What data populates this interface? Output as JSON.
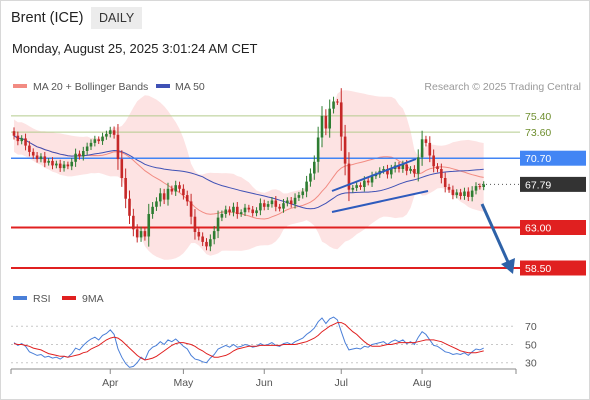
{
  "header": {
    "instrument": "Brent (ICE)",
    "timeframe": "DAILY",
    "datetime": "Monday, August 25, 2025 3:01:24 AM CET"
  },
  "legend": {
    "ma20_bb_label": "MA 20 + Bollinger Bands",
    "ma50_label": "MA 50",
    "rsi_label": "RSI",
    "rsi_ma_label": "9MA",
    "credit": "Research © 2025 Trading Central"
  },
  "colors": {
    "up_candle": "#2e7d32",
    "down_candle": "#c62828",
    "bollinger_fill": "#fde3e3",
    "ma20": "#f28b82",
    "ma50": "#3f51b5",
    "resistance": "#b5cc8e",
    "pivot": "#4285f4",
    "support": "#e02020",
    "last_price": "#333333",
    "rsi": "#4a7fd8",
    "rsi_ma": "#e02020",
    "trend_lines": "#2e5bbd",
    "forecast_arrow": "#2e62a8"
  },
  "chart_data": [
    {
      "type": "candlestick",
      "x_ticks": [
        "Apr",
        "May",
        "Jun",
        "Jul",
        "Aug"
      ],
      "ylim": [
        57.5,
        77.5
      ],
      "levels": [
        {
          "value": 75.4,
          "label": "75.40",
          "kind": "resistance"
        },
        {
          "value": 73.6,
          "label": "73.60",
          "kind": "resistance"
        },
        {
          "value": 70.7,
          "label": "70.70",
          "kind": "pivot"
        },
        {
          "value": 67.79,
          "label": "67.79",
          "kind": "last"
        },
        {
          "value": 63.0,
          "label": "63.00",
          "kind": "support"
        },
        {
          "value": 58.5,
          "label": "58.50",
          "kind": "support"
        }
      ],
      "closes": [
        73.2,
        72.6,
        72.9,
        72.1,
        71.4,
        71.0,
        70.6,
        70.9,
        70.2,
        70.4,
        69.9,
        70.1,
        69.6,
        70.0,
        69.8,
        70.3,
        71.2,
        70.9,
        71.5,
        72.0,
        72.4,
        72.8,
        72.6,
        73.1,
        73.4,
        73.8,
        73.3,
        70.6,
        68.5,
        66.2,
        64.3,
        62.8,
        61.9,
        62.6,
        62.0,
        64.5,
        65.3,
        65.9,
        66.8,
        66.1,
        67.3,
        67.0,
        67.7,
        67.3,
        66.6,
        65.9,
        64.2,
        62.5,
        62.0,
        61.4,
        60.9,
        61.7,
        62.6,
        64.1,
        64.5,
        65.0,
        64.7,
        65.3,
        64.5,
        64.7,
        65.2,
        65.0,
        64.6,
        64.9,
        65.7,
        65.3,
        65.6,
        66.0,
        65.3,
        65.1,
        65.7,
        66.0,
        65.6,
        66.3,
        66.6,
        67.0,
        68.1,
        69.0,
        70.3,
        73.0,
        75.4,
        74.0,
        76.2,
        77.0,
        76.9,
        73.1,
        70.1,
        67.2,
        67.4,
        67.7,
        67.5,
        68.2,
        68.0,
        68.7,
        68.9,
        69.3,
        69.5,
        68.9,
        69.5,
        69.9,
        69.5,
        70.0,
        69.3,
        69.5,
        69.0,
        70.8,
        72.8,
        72.4,
        71.0,
        69.8,
        69.5,
        68.5,
        67.5,
        67.2,
        66.6,
        66.9,
        66.5,
        67.0,
        66.4,
        67.1,
        67.6,
        67.5,
        67.79
      ]
    },
    {
      "type": "line",
      "title": "RSI",
      "x_ticks": [
        "Apr",
        "May",
        "Jun",
        "Jul",
        "Aug"
      ],
      "y_ticks": [
        70,
        50,
        30
      ],
      "ylim": [
        22,
        90
      ],
      "series": [
        {
          "name": "RSI",
          "values": [
            52,
            49,
            51,
            48,
            42,
            40,
            38,
            39,
            36,
            37,
            35,
            36,
            34,
            37,
            36,
            40,
            46,
            44,
            49,
            53,
            56,
            58,
            55,
            60,
            62,
            66,
            61,
            45,
            36,
            29,
            25,
            26,
            30,
            36,
            33,
            43,
            47,
            49,
            53,
            50,
            55,
            53,
            56,
            52,
            48,
            45,
            38,
            34,
            33,
            31,
            30,
            35,
            39,
            45,
            47,
            49,
            47,
            50,
            47,
            48,
            50,
            49,
            47,
            48,
            51,
            49,
            50,
            52,
            49,
            48,
            51,
            52,
            50,
            53,
            55,
            57,
            61,
            64,
            68,
            75,
            79,
            73,
            78,
            80,
            77,
            64,
            52,
            44,
            45,
            46,
            45,
            48,
            47,
            50,
            51,
            52,
            53,
            50,
            53,
            55,
            53,
            55,
            51,
            53,
            50,
            58,
            64,
            61,
            55,
            49,
            48,
            45,
            42,
            41,
            39,
            40,
            39,
            41,
            38,
            42,
            45,
            44,
            46
          ]
        },
        {
          "name": "9MA",
          "values": [
            51,
            50,
            50,
            49,
            48,
            46,
            45,
            44,
            42,
            40,
            39,
            38,
            37,
            37,
            36,
            37,
            38,
            39,
            41,
            42,
            45,
            47,
            49,
            52,
            55,
            57,
            58,
            57,
            54,
            50,
            46,
            42,
            38,
            35,
            33,
            34,
            35,
            37,
            40,
            43,
            46,
            49,
            51,
            52,
            52,
            51,
            50,
            48,
            45,
            43,
            40,
            38,
            36,
            36,
            37,
            38,
            40,
            43,
            45,
            46,
            47,
            48,
            48,
            48,
            49,
            49,
            49,
            49,
            49,
            49,
            50,
            50,
            50,
            50,
            51,
            52,
            53,
            55,
            57,
            60,
            64,
            67,
            70,
            72,
            74,
            74,
            72,
            68,
            64,
            61,
            57,
            53,
            50,
            48,
            48,
            48,
            49,
            50,
            50,
            51,
            52,
            52,
            52,
            52,
            52,
            53,
            54,
            55,
            55,
            55,
            54,
            53,
            51,
            49,
            47,
            45,
            43,
            42,
            41,
            41,
            41,
            42,
            43
          ]
        }
      ]
    }
  ]
}
